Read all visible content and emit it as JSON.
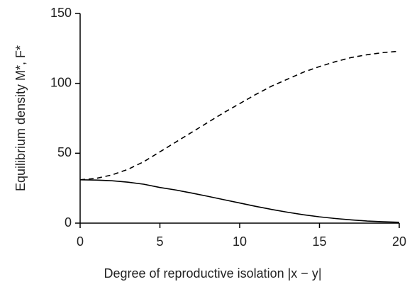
{
  "chart_data": {
    "type": "line",
    "xlabel": "Degree of reproductive isolation |x − y|",
    "ylabel": "Equilibrium density M*, F*",
    "x": [
      0,
      1,
      2,
      3,
      4,
      5,
      6,
      7,
      8,
      9,
      10,
      11,
      12,
      13,
      14,
      15,
      16,
      17,
      18,
      19,
      20
    ],
    "series": [
      {
        "color": "#000000",
        "dashed": false,
        "values": [
          31,
          30.8,
          30.3,
          29.3,
          27.8,
          25.5,
          23.7,
          21.5,
          19.2,
          16.8,
          14.4,
          12,
          9.8,
          7.8,
          6,
          4.5,
          3.3,
          2.3,
          1.5,
          1,
          0.6
        ]
      },
      {
        "color": "#000000",
        "dashed": true,
        "values": [
          31,
          32,
          34.5,
          38.5,
          44,
          51,
          58,
          65,
          72,
          79,
          85.5,
          92,
          98,
          103,
          108,
          112,
          115.5,
          118.5,
          120.5,
          122,
          123
        ]
      }
    ],
    "xlim": [
      0,
      20
    ],
    "xticks": [
      0,
      5,
      10,
      15,
      20
    ],
    "ylim": [
      0,
      150
    ],
    "yticks": [
      0,
      50,
      100,
      150
    ],
    "grid": false
  }
}
